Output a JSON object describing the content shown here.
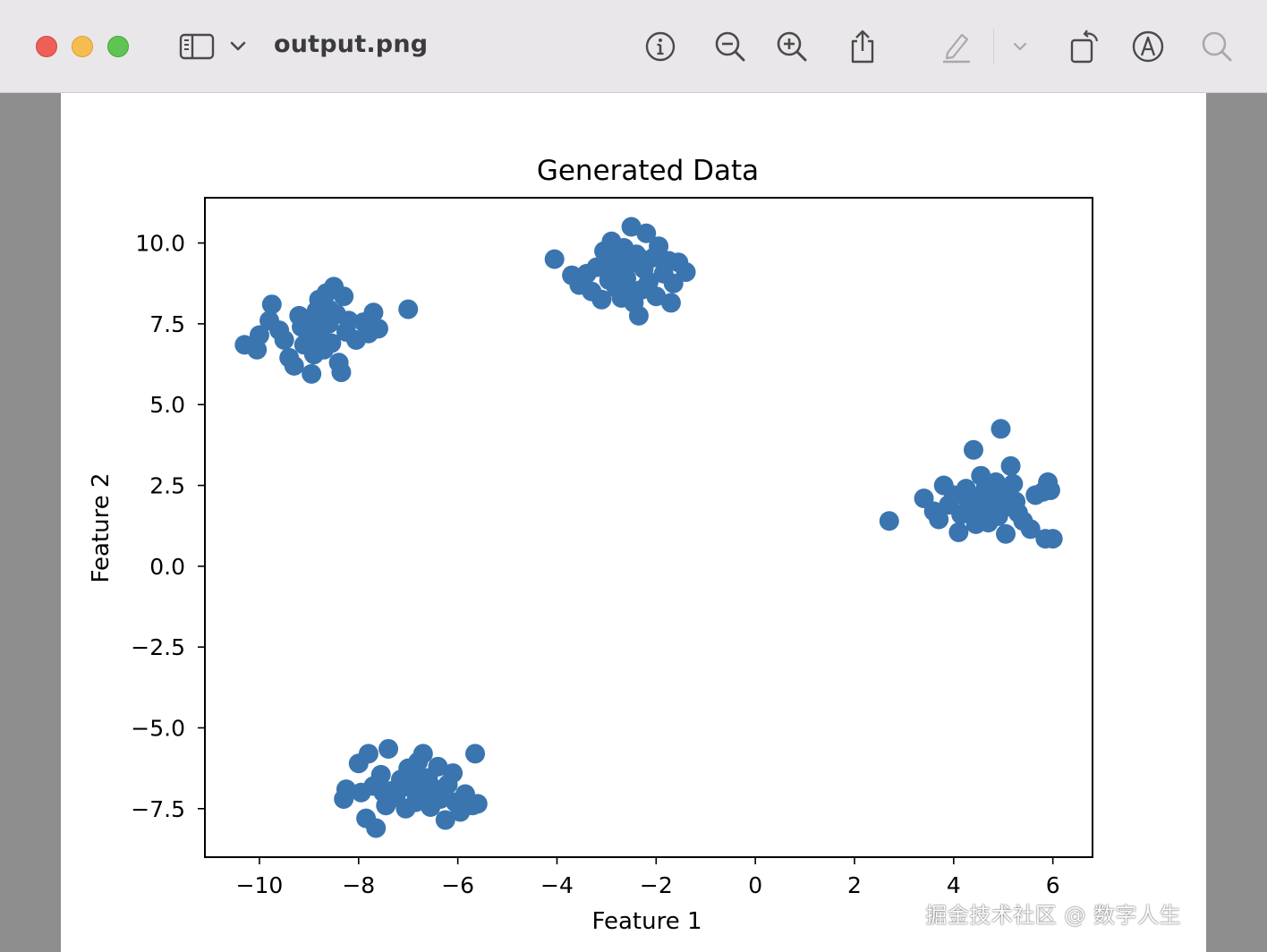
{
  "window": {
    "document_title": "output.png",
    "colors": {
      "titlebar_bg": "#e9e7ea",
      "toolbar_icon": "#4a4a4a",
      "toolbar_icon_disabled": "#a9a8aa",
      "sidebar_bg": "#8e8e8e",
      "page_bg": "#ffffff"
    },
    "toolbar_icons": [
      "sidebar-toggle-icon",
      "chevron-down-icon",
      "info-icon",
      "zoom-out-icon",
      "zoom-in-icon",
      "share-icon",
      "highlight-pen-icon",
      "chevron-down-icon",
      "rotate-icon",
      "markup-icon",
      "search-icon"
    ]
  },
  "watermark": "掘金技术社区 @ 数字人生",
  "chart_data": {
    "type": "scatter",
    "title": "Generated Data",
    "xlabel": "Feature 1",
    "ylabel": "Feature 2",
    "xlim": [
      -11.1,
      6.8
    ],
    "ylim": [
      -9.0,
      11.4
    ],
    "xticks": [
      -10,
      -8,
      -6,
      -4,
      -2,
      0,
      2,
      4,
      6
    ],
    "xtick_labels": [
      "−10",
      "−8",
      "−6",
      "−4",
      "−2",
      "0",
      "2",
      "4",
      "6"
    ],
    "yticks": [
      -7.5,
      -5.0,
      -2.5,
      0.0,
      2.5,
      5.0,
      7.5,
      10.0
    ],
    "ytick_labels": [
      "−7.5",
      "−5.0",
      "−2.5",
      "0.0",
      "2.5",
      "5.0",
      "7.5",
      "10.0"
    ],
    "grid": false,
    "color": "#3a75af",
    "series": [
      {
        "points": [
          [
            -10.3,
            6.85
          ],
          [
            -10.05,
            6.7
          ],
          [
            -10.0,
            7.15
          ],
          [
            -9.8,
            7.6
          ],
          [
            -9.75,
            8.1
          ],
          [
            -9.6,
            7.3
          ],
          [
            -9.5,
            7.0
          ],
          [
            -9.4,
            6.45
          ],
          [
            -9.3,
            6.2
          ],
          [
            -9.2,
            7.75
          ],
          [
            -9.15,
            7.4
          ],
          [
            -9.1,
            6.85
          ],
          [
            -9.0,
            7.2
          ],
          [
            -8.95,
            5.95
          ],
          [
            -8.9,
            6.55
          ],
          [
            -8.85,
            7.9
          ],
          [
            -8.8,
            8.25
          ],
          [
            -8.75,
            7.05
          ],
          [
            -8.7,
            6.7
          ],
          [
            -8.65,
            8.45
          ],
          [
            -8.6,
            7.5
          ],
          [
            -8.55,
            6.9
          ],
          [
            -8.5,
            8.65
          ],
          [
            -8.45,
            7.8
          ],
          [
            -8.4,
            6.3
          ],
          [
            -8.35,
            6.0
          ],
          [
            -8.3,
            8.35
          ],
          [
            -8.25,
            7.25
          ],
          [
            -8.2,
            7.6
          ],
          [
            -8.05,
            7.0
          ],
          [
            -7.9,
            7.55
          ],
          [
            -7.8,
            7.2
          ],
          [
            -7.7,
            7.85
          ],
          [
            -7.6,
            7.35
          ],
          [
            -8.8,
            7.65
          ],
          [
            -9.05,
            7.5
          ],
          [
            -8.6,
            7.95
          ],
          [
            -8.9,
            7.1
          ],
          [
            -7.0,
            7.95
          ]
        ]
      },
      {
        "points": [
          [
            -4.05,
            9.5
          ],
          [
            -3.7,
            9.0
          ],
          [
            -3.55,
            8.7
          ],
          [
            -3.4,
            9.05
          ],
          [
            -3.3,
            8.5
          ],
          [
            -3.2,
            9.25
          ],
          [
            -3.1,
            8.25
          ],
          [
            -3.05,
            9.75
          ],
          [
            -2.95,
            8.85
          ],
          [
            -2.9,
            10.05
          ],
          [
            -2.85,
            9.45
          ],
          [
            -2.8,
            8.6
          ],
          [
            -2.75,
            9.1
          ],
          [
            -2.7,
            8.3
          ],
          [
            -2.65,
            9.85
          ],
          [
            -2.6,
            8.9
          ],
          [
            -2.55,
            9.35
          ],
          [
            -2.5,
            10.5
          ],
          [
            -2.45,
            8.15
          ],
          [
            -2.4,
            9.65
          ],
          [
            -2.35,
            7.75
          ],
          [
            -2.3,
            8.55
          ],
          [
            -2.25,
            9.2
          ],
          [
            -2.2,
            10.3
          ],
          [
            -2.15,
            8.8
          ],
          [
            -2.05,
            9.55
          ],
          [
            -2.0,
            8.35
          ],
          [
            -1.95,
            9.9
          ],
          [
            -1.85,
            9.05
          ],
          [
            -1.75,
            9.45
          ],
          [
            -1.7,
            8.15
          ],
          [
            -1.65,
            8.75
          ],
          [
            -1.55,
            9.4
          ],
          [
            -1.4,
            9.1
          ],
          [
            -2.7,
            9.6
          ],
          [
            -3.0,
            9.3
          ],
          [
            -2.55,
            8.6
          ],
          [
            -2.3,
            9.5
          ],
          [
            -2.9,
            8.9
          ]
        ]
      },
      {
        "points": [
          [
            2.7,
            1.4
          ],
          [
            3.4,
            2.1
          ],
          [
            3.6,
            1.7
          ],
          [
            3.7,
            1.45
          ],
          [
            3.8,
            2.5
          ],
          [
            3.9,
            1.9
          ],
          [
            4.0,
            2.2
          ],
          [
            4.1,
            1.05
          ],
          [
            4.15,
            1.6
          ],
          [
            4.25,
            2.4
          ],
          [
            4.3,
            1.95
          ],
          [
            4.4,
            3.6
          ],
          [
            4.45,
            1.3
          ],
          [
            4.5,
            2.15
          ],
          [
            4.55,
            2.8
          ],
          [
            4.6,
            1.75
          ],
          [
            4.65,
            2.45
          ],
          [
            4.7,
            1.35
          ],
          [
            4.8,
            2.05
          ],
          [
            4.85,
            2.6
          ],
          [
            4.9,
            1.55
          ],
          [
            4.95,
            4.25
          ],
          [
            5.0,
            2.3
          ],
          [
            5.05,
            1.0
          ],
          [
            5.1,
            1.85
          ],
          [
            5.15,
            3.1
          ],
          [
            5.2,
            2.55
          ],
          [
            5.3,
            1.65
          ],
          [
            5.4,
            1.4
          ],
          [
            5.55,
            1.15
          ],
          [
            5.65,
            2.2
          ],
          [
            5.8,
            2.3
          ],
          [
            5.85,
            0.85
          ],
          [
            5.9,
            2.6
          ],
          [
            5.95,
            2.35
          ],
          [
            6.0,
            0.85
          ],
          [
            4.35,
            1.7
          ],
          [
            4.75,
            2.25
          ],
          [
            5.25,
            2.0
          ]
        ]
      },
      {
        "points": [
          [
            -8.3,
            -7.2
          ],
          [
            -8.25,
            -6.9
          ],
          [
            -8.0,
            -6.1
          ],
          [
            -7.95,
            -7.0
          ],
          [
            -7.85,
            -7.8
          ],
          [
            -7.8,
            -5.8
          ],
          [
            -7.7,
            -6.8
          ],
          [
            -7.65,
            -8.1
          ],
          [
            -7.55,
            -6.45
          ],
          [
            -7.45,
            -7.4
          ],
          [
            -7.4,
            -5.65
          ],
          [
            -7.35,
            -6.95
          ],
          [
            -7.25,
            -7.15
          ],
          [
            -7.15,
            -6.6
          ],
          [
            -7.05,
            -7.5
          ],
          [
            -7.0,
            -6.25
          ],
          [
            -6.95,
            -6.85
          ],
          [
            -6.85,
            -7.3
          ],
          [
            -6.8,
            -6.05
          ],
          [
            -6.75,
            -7.0
          ],
          [
            -6.7,
            -5.8
          ],
          [
            -6.6,
            -6.55
          ],
          [
            -6.55,
            -7.45
          ],
          [
            -6.45,
            -6.9
          ],
          [
            -6.4,
            -6.2
          ],
          [
            -6.35,
            -7.2
          ],
          [
            -6.25,
            -7.85
          ],
          [
            -6.2,
            -6.75
          ],
          [
            -6.1,
            -6.4
          ],
          [
            -6.05,
            -7.3
          ],
          [
            -5.95,
            -7.6
          ],
          [
            -5.85,
            -7.05
          ],
          [
            -5.65,
            -5.8
          ],
          [
            -5.6,
            -7.35
          ],
          [
            -5.7,
            -7.4
          ],
          [
            -7.2,
            -6.9
          ],
          [
            -6.9,
            -6.5
          ],
          [
            -6.6,
            -7.1
          ],
          [
            -7.5,
            -7.0
          ]
        ]
      }
    ]
  }
}
